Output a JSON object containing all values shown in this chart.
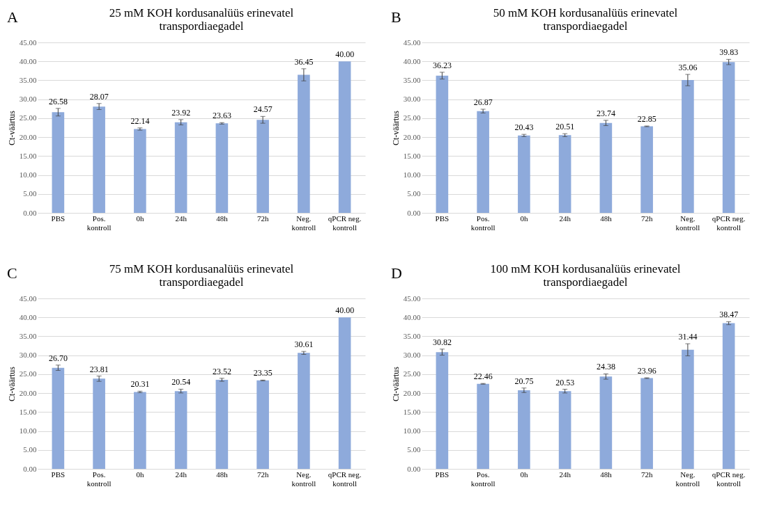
{
  "chart_data": [
    {
      "type": "bar",
      "title": "25 mM KOH kordusanalüüs erinevatel transpordiaegadel",
      "annotations": [
        "A"
      ],
      "ylabel": "Ct-väärtus",
      "categories": [
        "PBS",
        "Pos. kontroll",
        "0h",
        "24h",
        "48h",
        "72h",
        "Neg. kontroll",
        "qPCR neg. kontroll"
      ],
      "values": [
        26.58,
        28.07,
        22.14,
        23.92,
        23.63,
        24.57,
        36.45,
        40.0
      ],
      "errors": [
        1.0,
        0.8,
        0.3,
        0.7,
        0.2,
        0.9,
        1.6,
        null
      ],
      "color": "#8eaadb",
      "value_labels": [
        "26.58",
        "28.07",
        "22.14",
        "23.92",
        "23.63",
        "24.57",
        "36.45",
        "40.00"
      ],
      "ylim": [
        0,
        45
      ],
      "yticks": [
        {
          "value": 0,
          "label": "0.00"
        },
        {
          "value": 5,
          "label": "5.00"
        },
        {
          "value": 10,
          "label": "10.00"
        },
        {
          "value": 15,
          "label": "15.00"
        },
        {
          "value": 20,
          "label": "20.00"
        },
        {
          "value": 25,
          "label": "25.00"
        },
        {
          "value": 30,
          "label": "30.00"
        },
        {
          "value": 35,
          "label": "35.00"
        },
        {
          "value": 40,
          "label": "40.00"
        },
        {
          "value": 45,
          "label": "45.00"
        }
      ],
      "grid": "y"
    },
    {
      "type": "bar",
      "title": "50 mM KOH kordusanalüüs erinevatel transpordiaegadel",
      "annotations": [
        "B"
      ],
      "ylabel": "Ct-väärtus",
      "categories": [
        "PBS",
        "Pos. kontroll",
        "0h",
        "24h",
        "48h",
        "72h",
        "Neg. kontroll",
        "qPCR neg. kontroll"
      ],
      "values": [
        36.23,
        26.87,
        20.43,
        20.51,
        23.74,
        22.85,
        35.06,
        39.83
      ],
      "errors": [
        0.9,
        0.5,
        0.3,
        0.4,
        0.7,
        0.1,
        1.5,
        0.7
      ],
      "color": "#8eaadb",
      "value_labels": [
        "36.23",
        "26.87",
        "20.43",
        "20.51",
        "23.74",
        "22.85",
        "35.06",
        "39.83"
      ],
      "ylim": [
        0,
        45
      ],
      "yticks": [
        {
          "value": 0,
          "label": "0.00"
        },
        {
          "value": 5,
          "label": "5.00"
        },
        {
          "value": 10,
          "label": "10.00"
        },
        {
          "value": 15,
          "label": "15.00"
        },
        {
          "value": 20,
          "label": "20.00"
        },
        {
          "value": 25,
          "label": "25.00"
        },
        {
          "value": 30,
          "label": "30.00"
        },
        {
          "value": 35,
          "label": "35.00"
        },
        {
          "value": 40,
          "label": "40.00"
        },
        {
          "value": 45,
          "label": "45.00"
        }
      ],
      "grid": "y"
    },
    {
      "type": "bar",
      "title": "75 mM KOH kordusanalüüs erinevatel transpordiaegadel",
      "annotations": [
        "C"
      ],
      "ylabel": "Ct-väärtus",
      "categories": [
        "PBS",
        "Pos. kontroll",
        "0h",
        "24h",
        "48h",
        "72h",
        "Neg. kontroll",
        "qPCR neg. kontroll"
      ],
      "values": [
        26.7,
        23.81,
        20.31,
        20.54,
        23.52,
        23.35,
        30.61,
        40.0
      ],
      "errors": [
        0.7,
        0.7,
        0.2,
        0.5,
        0.4,
        0.1,
        0.4,
        null
      ],
      "color": "#8eaadb",
      "value_labels": [
        "26.70",
        "23.81",
        "20.31",
        "20.54",
        "23.52",
        "23.35",
        "30.61",
        "40.00"
      ],
      "ylim": [
        0,
        45
      ],
      "yticks": [
        {
          "value": 0,
          "label": "0.00"
        },
        {
          "value": 5,
          "label": "5.00"
        },
        {
          "value": 10,
          "label": "10.00"
        },
        {
          "value": 15,
          "label": "15.00"
        },
        {
          "value": 20,
          "label": "20.00"
        },
        {
          "value": 25,
          "label": "25.00"
        },
        {
          "value": 30,
          "label": "30.00"
        },
        {
          "value": 35,
          "label": "35.00"
        },
        {
          "value": 40,
          "label": "40.00"
        },
        {
          "value": 45,
          "label": "45.00"
        }
      ],
      "grid": "y"
    },
    {
      "type": "bar",
      "title": "100 mM KOH kordusanalüüs erinevatel transpordiaegadel",
      "annotations": [
        "D"
      ],
      "ylabel": "Ct-väärtus",
      "categories": [
        "PBS",
        "Pos. kontroll",
        "0h",
        "24h",
        "48h",
        "72h",
        "Neg. kontroll",
        "qPCR neg. kontroll"
      ],
      "values": [
        30.82,
        22.46,
        20.75,
        20.53,
        24.38,
        23.96,
        31.44,
        38.47
      ],
      "errors": [
        0.8,
        0.1,
        0.6,
        0.5,
        0.7,
        0.1,
        1.6,
        0.4
      ],
      "color": "#8eaadb",
      "value_labels": [
        "30.82",
        "22.46",
        "20.75",
        "20.53",
        "24.38",
        "23.96",
        "31.44",
        "38.47"
      ],
      "ylim": [
        0,
        45
      ],
      "yticks": [
        {
          "value": 0,
          "label": "0.00"
        },
        {
          "value": 5,
          "label": "5.00"
        },
        {
          "value": 10,
          "label": "10.00"
        },
        {
          "value": 15,
          "label": "15.00"
        },
        {
          "value": 20,
          "label": "20.00"
        },
        {
          "value": 25,
          "label": "25.00"
        },
        {
          "value": 30,
          "label": "30.00"
        },
        {
          "value": 35,
          "label": "35.00"
        },
        {
          "value": 40,
          "label": "40.00"
        },
        {
          "value": 45,
          "label": "45.00"
        }
      ],
      "grid": "y"
    }
  ]
}
